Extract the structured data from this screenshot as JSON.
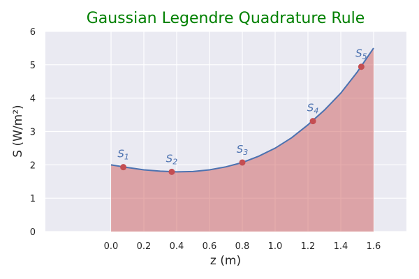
{
  "chart_data": {
    "type": "area",
    "title": "Gaussian Legendre Quadrature Rule",
    "xlabel": "z (m)",
    "ylabel": "S (W/m²)",
    "xlim": [
      -0.4,
      1.8
    ],
    "ylim": [
      0,
      6
    ],
    "xticks": [
      "0.0",
      "0.2",
      "0.4",
      "0.6",
      "0.8",
      "1.0",
      "1.2",
      "1.4",
      "1.6"
    ],
    "yticks": [
      "0",
      "1",
      "2",
      "3",
      "4",
      "5",
      "6"
    ],
    "grid": true,
    "curve": {
      "x": [
        0.0,
        0.1,
        0.2,
        0.3,
        0.4,
        0.5,
        0.6,
        0.7,
        0.8,
        0.9,
        1.0,
        1.1,
        1.2,
        1.3,
        1.4,
        1.5,
        1.6
      ],
      "y": [
        2.0,
        1.92,
        1.85,
        1.81,
        1.79,
        1.8,
        1.85,
        1.94,
        2.07,
        2.26,
        2.5,
        2.81,
        3.2,
        3.64,
        4.15,
        4.78,
        5.5
      ]
    },
    "points": [
      {
        "name": "S",
        "sub": "1",
        "x": 0.075,
        "y": 1.93
      },
      {
        "name": "S",
        "sub": "2",
        "x": 0.37,
        "y": 1.79
      },
      {
        "name": "S",
        "sub": "3",
        "x": 0.8,
        "y": 2.07
      },
      {
        "name": "S",
        "sub": "4",
        "x": 1.23,
        "y": 3.31
      },
      {
        "name": "S",
        "sub": "5",
        "x": 1.525,
        "y": 4.94
      }
    ],
    "colors": {
      "background": "#eaeaf2",
      "grid": "#ffffff",
      "fill": "#cd5c5c",
      "line": "#4c72b0",
      "marker": "#c44e52",
      "label": "#4c72b0",
      "title": "#008000"
    }
  }
}
